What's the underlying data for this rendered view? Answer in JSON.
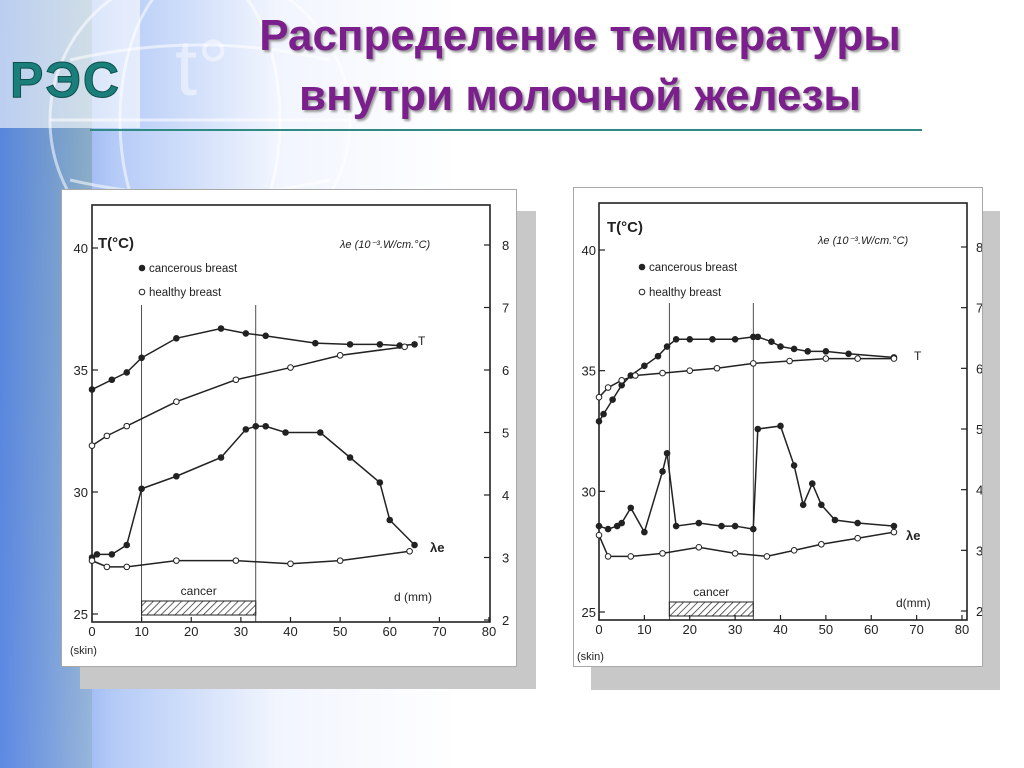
{
  "slide": {
    "title_line1": "Распределение температуры",
    "title_line2": "внутри молочной железы",
    "logo_text": "РЭС"
  },
  "chart_data": [
    {
      "type": "line",
      "y_left_label": "T(°C)",
      "y_right_label": "λe (10⁻³.W/cm.°C)",
      "x_label": "d (mm)",
      "x_skin_label": "(skin)",
      "x_ticks": [
        0,
        10,
        20,
        30,
        40,
        50,
        60,
        70,
        80
      ],
      "y_left_ticks": [
        25,
        30,
        35,
        40
      ],
      "y_right_ticks": [
        2,
        3,
        4,
        5,
        6,
        7,
        8
      ],
      "xlim": [
        0,
        80
      ],
      "ylim_left": [
        25,
        40
      ],
      "ylim_right": [
        2,
        8
      ],
      "legend": [
        "cancerous breast",
        "healthy breast"
      ],
      "curve_labels": {
        "T": "T",
        "lambda": "λe"
      },
      "cancer_label": "cancer",
      "cancer_range": [
        10,
        33
      ],
      "series": [
        {
          "name": "cancerous breast",
          "axis": "left",
          "marker": "filled",
          "x": [
            0,
            4,
            7,
            10,
            17,
            26,
            31,
            35,
            45,
            52,
            58,
            62,
            65
          ],
          "y": [
            34.2,
            34.6,
            34.9,
            35.5,
            36.3,
            36.7,
            36.5,
            36.4,
            36.1,
            36.05,
            36.05,
            36.0,
            36.05
          ]
        },
        {
          "name": "healthy breast",
          "axis": "left",
          "marker": "open",
          "x": [
            0,
            3,
            7,
            17,
            29,
            40,
            50,
            63
          ],
          "y": [
            31.9,
            32.3,
            32.7,
            33.7,
            34.6,
            35.1,
            35.6,
            35.95
          ]
        },
        {
          "name": "cancerous breast",
          "axis": "right",
          "marker": "filled",
          "x": [
            0,
            1,
            4,
            7,
            10,
            17,
            26,
            31,
            33,
            35,
            39,
            46,
            52,
            58,
            60,
            65
          ],
          "y": [
            3.0,
            3.05,
            3.05,
            3.2,
            4.1,
            4.3,
            4.6,
            5.05,
            5.1,
            5.1,
            5.0,
            5.0,
            4.6,
            4.2,
            3.6,
            3.2
          ]
        },
        {
          "name": "healthy breast",
          "axis": "right",
          "marker": "open",
          "x": [
            0,
            3,
            7,
            17,
            29,
            40,
            50,
            64
          ],
          "y": [
            2.95,
            2.85,
            2.85,
            2.95,
            2.95,
            2.9,
            2.95,
            3.1
          ]
        }
      ]
    },
    {
      "type": "line",
      "y_left_label": "T(°C)",
      "y_right_label": "λe (10⁻³.W/cm.°C)",
      "x_label": "d(mm)",
      "x_skin_label": "(skin)",
      "x_ticks": [
        0,
        10,
        20,
        30,
        40,
        50,
        60,
        70,
        80
      ],
      "y_left_ticks": [
        25,
        30,
        35,
        40
      ],
      "y_right_ticks": [
        2,
        3,
        4,
        5,
        6,
        7,
        8
      ],
      "xlim": [
        0,
        80
      ],
      "ylim_left": [
        25,
        40
      ],
      "ylim_right": [
        2,
        8
      ],
      "legend": [
        "cancerous breast",
        "healthy breast"
      ],
      "curve_labels": {
        "T": "T",
        "lambda": "λe"
      },
      "cancer_label": "cancer",
      "cancer_range": [
        15.5,
        34
      ],
      "series": [
        {
          "name": "cancerous breast",
          "axis": "left",
          "marker": "filled",
          "x": [
            0,
            1,
            3,
            5,
            7,
            10,
            13,
            15,
            17,
            20,
            25,
            30,
            34,
            35,
            38,
            40,
            43,
            46,
            50,
            55,
            65
          ],
          "y": [
            32.9,
            33.2,
            33.8,
            34.4,
            34.8,
            35.2,
            35.6,
            36.0,
            36.3,
            36.3,
            36.3,
            36.3,
            36.4,
            36.4,
            36.2,
            36.0,
            35.9,
            35.8,
            35.8,
            35.7,
            35.55
          ]
        },
        {
          "name": "healthy breast",
          "axis": "left",
          "marker": "open",
          "x": [
            0,
            2,
            5,
            8,
            14,
            20,
            26,
            34,
            42,
            50,
            57,
            65
          ],
          "y": [
            33.9,
            34.3,
            34.6,
            34.8,
            34.9,
            35.0,
            35.1,
            35.3,
            35.4,
            35.5,
            35.5,
            35.5
          ]
        },
        {
          "name": "cancerous breast",
          "axis": "right",
          "marker": "filled",
          "x": [
            0,
            2,
            4,
            5,
            7,
            10,
            14,
            15,
            17,
            22,
            27,
            30,
            34,
            35,
            40,
            43,
            45,
            47,
            49,
            52,
            57,
            65
          ],
          "y": [
            3.4,
            3.35,
            3.4,
            3.45,
            3.7,
            3.3,
            4.3,
            4.6,
            3.4,
            3.45,
            3.4,
            3.4,
            3.35,
            5.0,
            5.05,
            4.4,
            3.75,
            4.1,
            3.75,
            3.5,
            3.45,
            3.4
          ]
        },
        {
          "name": "healthy breast",
          "axis": "right",
          "marker": "open",
          "x": [
            0,
            2,
            7,
            14,
            22,
            30,
            37,
            43,
            49,
            57,
            65
          ],
          "y": [
            3.25,
            2.9,
            2.9,
            2.95,
            3.05,
            2.95,
            2.9,
            3.0,
            3.1,
            3.2,
            3.3
          ]
        }
      ]
    }
  ]
}
